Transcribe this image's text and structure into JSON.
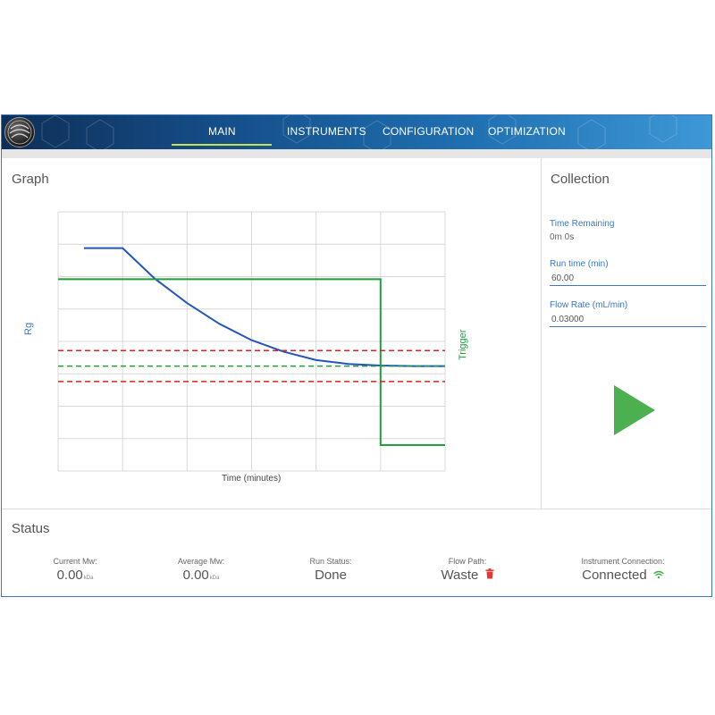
{
  "tabs": [
    {
      "label": "MAIN",
      "active": true
    },
    {
      "label": "INSTRUMENTS",
      "active": false
    },
    {
      "label": "CONFIGURATION",
      "active": false
    },
    {
      "label": "OPTIMIZATION",
      "active": false
    }
  ],
  "graph": {
    "title": "Graph",
    "left_axis_label": "Rg",
    "right_axis_label": "Trigger",
    "x_axis_label": "Time (minutes)"
  },
  "chart_data": {
    "type": "line",
    "xlabel": "Time (minutes)",
    "ylabel": "Rg",
    "y2label": "Trigger",
    "grid": true,
    "series": [
      {
        "name": "Rg",
        "color": "#2255bb",
        "style": "solid",
        "x": [
          0.4,
          1.0,
          1.5,
          2.0,
          2.5,
          3.0,
          3.5,
          4.0,
          4.5,
          5.0,
          5.5,
          6.0
        ],
        "y": [
          0.86,
          0.86,
          0.742,
          0.648,
          0.568,
          0.505,
          0.46,
          0.428,
          0.413,
          0.407,
          0.405,
          0.405
        ]
      },
      {
        "name": "Trigger",
        "color": "#1f9e3a",
        "style": "solid",
        "x": [
          0,
          5.0,
          5.0,
          6.0
        ],
        "y": [
          0.74,
          0.74,
          0.1,
          0.1
        ]
      },
      {
        "name": "Upper threshold",
        "color": "#e02020",
        "style": "dashed",
        "x": [
          0,
          6.0
        ],
        "y": [
          0.465,
          0.465
        ]
      },
      {
        "name": "Target",
        "color": "#1f9e3a",
        "style": "dashed",
        "x": [
          0,
          6.0
        ],
        "y": [
          0.405,
          0.405
        ]
      },
      {
        "name": "Lower threshold",
        "color": "#e02020",
        "style": "dashed",
        "x": [
          0,
          6.0
        ],
        "y": [
          0.345,
          0.345
        ]
      }
    ],
    "xlim": [
      0,
      6
    ],
    "ylim": [
      0,
      1
    ]
  },
  "collection": {
    "title": "Collection",
    "time_remaining_label": "Time Remaining",
    "time_remaining_value": "0m 0s",
    "run_time_label": "Run time (min)",
    "run_time_value": "60.00",
    "flow_rate_label": "Flow Rate (mL/min)",
    "flow_rate_value": "0.03000"
  },
  "status": {
    "title": "Status",
    "current_mw_label": "Current Mw:",
    "current_mw_value": "0.00",
    "current_mw_unit": "kDa",
    "average_mw_label": "Average Mw:",
    "average_mw_value": "0.00",
    "average_mw_unit": "kDa",
    "run_status_label": "Run Status:",
    "run_status_value": "Done",
    "flow_path_label": "Flow Path:",
    "flow_path_value": "Waste",
    "instrument_connection_label": "Instrument Connection:",
    "instrument_connection_value": "Connected"
  },
  "colors": {
    "accent": "#3a78c0",
    "active_tab": "#c8e24a",
    "play": "#4caf50",
    "trash": "#e53935",
    "wifi": "#3cb043"
  }
}
